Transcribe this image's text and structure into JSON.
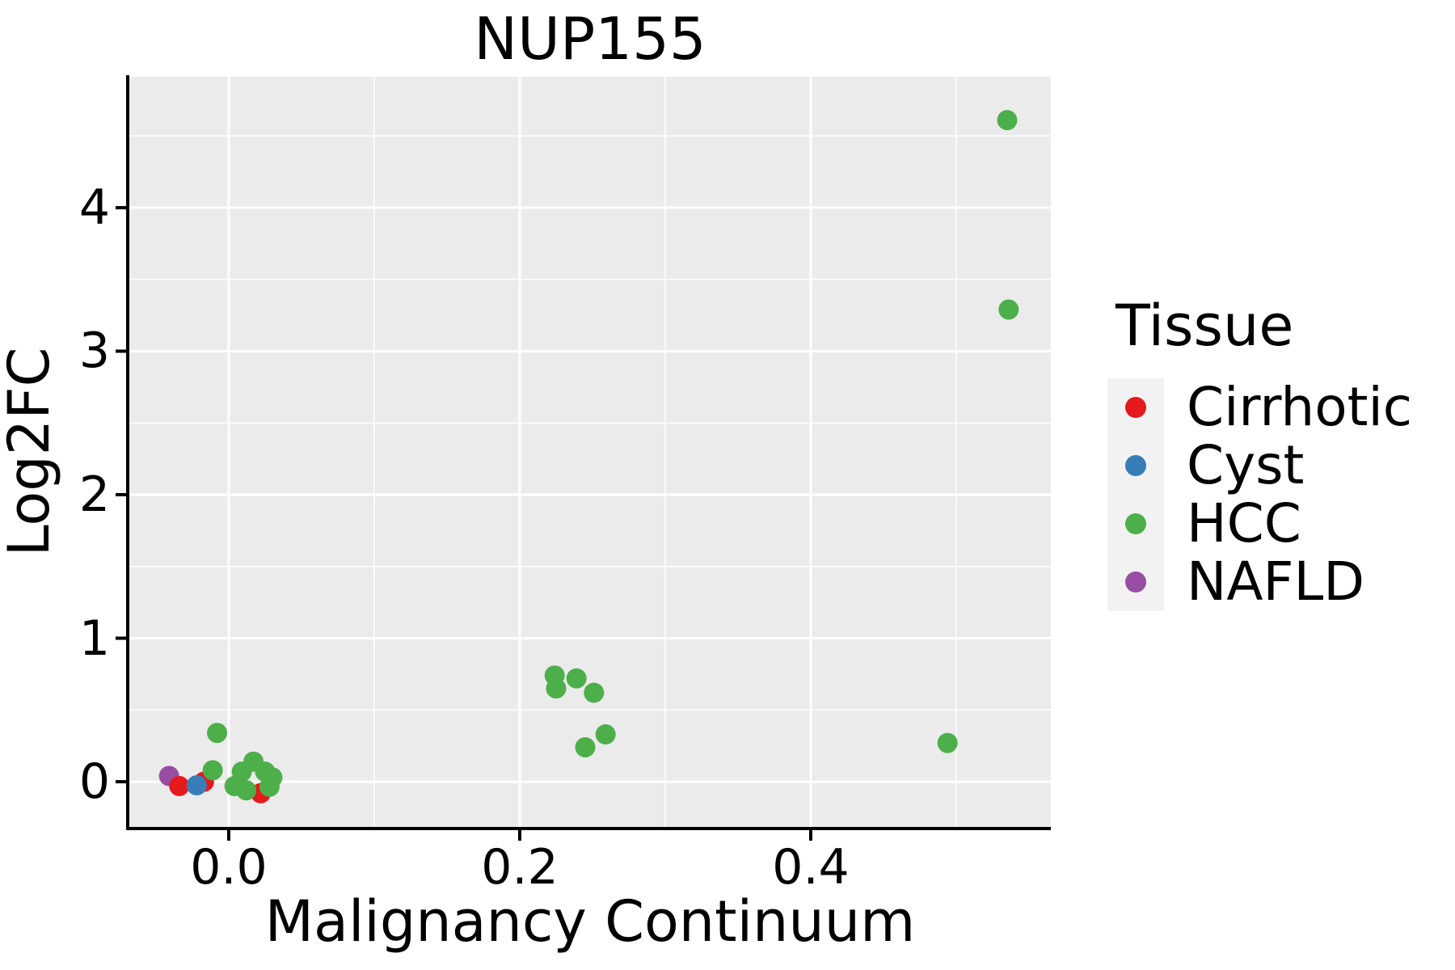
{
  "title": "NUP155",
  "colors": {
    "panel_bg": "#ebebeb",
    "grid": "#ffffff",
    "axis": "#000000",
    "text": "#000000",
    "legend_key_bg": "#f2f2f2",
    "cirrhotic": "#e41a1c",
    "cyst": "#377eb8",
    "hcc": "#4daf4a",
    "nafld": "#984ea3"
  },
  "chart_data": {
    "type": "scatter",
    "title": "NUP155",
    "xlabel": "Malignancy Continuum",
    "ylabel": "Log2FC",
    "xlim": [
      -0.0683,
      0.565
    ],
    "ylim": [
      -0.315,
      4.912
    ],
    "x_major_ticks": [
      0.0,
      0.2,
      0.4
    ],
    "x_tick_labels": [
      "0.0",
      "0.2",
      "0.4"
    ],
    "x_minor_ticks": [
      0.1,
      0.3,
      0.5
    ],
    "y_major_ticks": [
      0,
      1,
      2,
      3,
      4
    ],
    "y_tick_labels": [
      "0",
      "1",
      "2",
      "3",
      "4"
    ],
    "y_minor_ticks": [
      0.5,
      1.5,
      2.5,
      3.5,
      4.5
    ],
    "grid": "white major+minor gridlines on gray panel",
    "legend_position": "right",
    "point_radius_px": 12.5,
    "draw_order": [
      "NAFLD",
      "Cirrhotic",
      "Cyst",
      "HCC"
    ],
    "series": [
      {
        "name": "Cirrhotic",
        "color": "#e41a1c",
        "points": [
          [
            -0.034,
            -0.03
          ],
          [
            -0.017,
            0.0
          ],
          [
            0.022,
            -0.08
          ]
        ]
      },
      {
        "name": "Cyst",
        "color": "#377eb8",
        "points": [
          [
            -0.022,
            -0.025
          ]
        ]
      },
      {
        "name": "HCC",
        "color": "#4daf4a",
        "points": [
          [
            -0.011,
            0.08
          ],
          [
            -0.008,
            0.34
          ],
          [
            0.004,
            -0.03
          ],
          [
            0.009,
            0.07
          ],
          [
            0.012,
            -0.06
          ],
          [
            0.017,
            0.14
          ],
          [
            0.025,
            0.07
          ],
          [
            0.028,
            -0.035
          ],
          [
            0.03,
            0.03
          ],
          [
            0.224,
            0.74
          ],
          [
            0.225,
            0.65
          ],
          [
            0.239,
            0.72
          ],
          [
            0.251,
            0.62
          ],
          [
            0.245,
            0.24
          ],
          [
            0.259,
            0.33
          ],
          [
            0.494,
            0.27
          ],
          [
            0.536,
            3.29
          ],
          [
            0.535,
            4.61
          ]
        ]
      },
      {
        "name": "NAFLD",
        "color": "#984ea3",
        "points": [
          [
            -0.041,
            0.04
          ]
        ]
      }
    ]
  },
  "legend": {
    "title": "Tissue",
    "items": [
      {
        "label": "Cirrhotic",
        "color": "#e41a1c"
      },
      {
        "label": "Cyst",
        "color": "#377eb8"
      },
      {
        "label": "HCC",
        "color": "#4daf4a"
      },
      {
        "label": "NAFLD",
        "color": "#984ea3"
      }
    ]
  }
}
